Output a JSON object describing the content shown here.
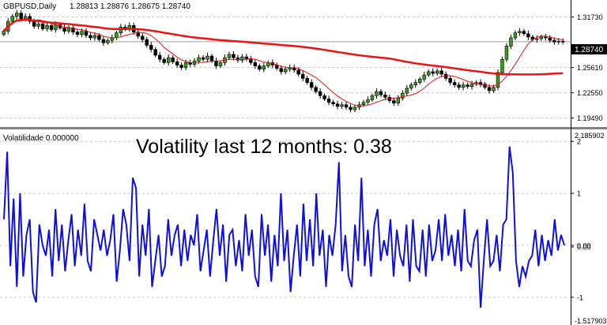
{
  "main_panel": {
    "symbol_label": "GBPUSD,Daily",
    "ohlc_label": "1.28813 1.28876 1.28675 1.28740",
    "current_price_label": "1.28740",
    "axis_ticks": [
      "1.31730",
      "1.28740",
      "1.25610",
      "1.22550",
      "1.19490"
    ]
  },
  "indicator_panel": {
    "indicator_label": "Volatilidade 0.000000",
    "annotation": "Volatility last 12 months: 0.38",
    "max_label": "2.185902",
    "min_label": "-1.517903",
    "axis_ticks": [
      "2",
      "1",
      "0.00",
      "0.00",
      "-1"
    ]
  },
  "colors": {
    "background": "#ffffff",
    "candle": "#000000",
    "bull_body": "#3c9a1c",
    "bear_body": "#000000",
    "long_ma": "#ee1111",
    "short_ma": "#ee1111",
    "oscillator": "#1010dd",
    "grid": "#c8c8c8",
    "price_box": "#000000",
    "price_text": "#ffffff"
  },
  "chart_data": [
    {
      "type": "candlestick",
      "ylim": [
        1.185,
        1.335
      ],
      "grid": true,
      "series": [
        {
          "values": [
            1.3,
            1.312,
            1.318,
            1.322,
            1.315,
            1.318,
            1.312,
            1.306,
            1.309,
            1.303,
            1.307,
            1.302,
            1.308,
            1.304,
            1.3,
            1.304,
            1.299,
            1.296,
            1.3,
            1.295,
            1.292,
            1.295,
            1.29,
            1.286,
            1.289,
            1.292,
            1.298,
            1.305,
            1.303,
            1.307,
            1.299,
            1.294,
            1.29,
            1.283,
            1.278,
            1.271,
            1.266,
            1.262,
            1.268,
            1.263,
            1.259,
            1.256,
            1.262,
            1.26,
            1.264,
            1.268,
            1.266,
            1.27,
            1.264,
            1.258,
            1.262,
            1.268,
            1.272,
            1.268,
            1.265,
            1.269,
            1.267,
            1.262,
            1.258,
            1.254,
            1.258,
            1.262,
            1.259,
            1.255,
            1.251,
            1.254,
            1.256,
            1.253,
            1.248,
            1.243,
            1.238,
            1.232,
            1.227,
            1.222,
            1.218,
            1.214,
            1.212,
            1.209,
            1.211,
            1.208,
            1.205,
            1.208,
            1.211,
            1.214,
            1.217,
            1.222,
            1.227,
            1.223,
            1.22,
            1.216,
            1.213,
            1.219,
            1.225,
            1.231,
            1.235,
            1.238,
            1.242,
            1.247,
            1.251,
            1.249,
            1.252,
            1.248,
            1.243,
            1.238,
            1.235,
            1.232,
            1.235,
            1.233,
            1.236,
            1.238,
            1.236,
            1.232,
            1.228,
            1.232,
            1.25,
            1.266,
            1.282,
            1.292,
            1.298,
            1.3,
            1.297,
            1.293,
            1.29,
            1.291,
            1.293,
            1.292,
            1.289,
            1.287,
            1.288,
            1.287
          ]
        }
      ]
    },
    {
      "type": "line",
      "ylim": [
        -1.517903,
        2.185902
      ],
      "grid": true,
      "series": [
        {
          "values": [
            0.5,
            1.8,
            -0.4,
            0.9,
            -0.8,
            1.0,
            -0.6,
            0.2,
            0.5,
            -0.9,
            -1.1,
            0.4,
            0.0,
            -0.2,
            0.3,
            -0.6,
            0.7,
            -0.3,
            0.4,
            -0.5,
            0.1,
            0.6,
            -0.4,
            0.3,
            -0.2,
            0.8,
            -0.3,
            -0.5,
            0.5,
            0.2,
            -0.1,
            0.3,
            -0.2,
            0.1,
            0.6,
            -0.7,
            -0.1,
            0.7,
            0.4,
            -0.3,
            1.3,
            1.1,
            -0.6,
            0.4,
            -0.2,
            0.7,
            -0.8,
            -0.3,
            0.2,
            -0.6,
            -0.4,
            0.5,
            -0.2,
            0.2,
            0.4,
            -0.4,
            0.3,
            -0.3,
            0.2,
            0.0,
            0.6,
            -0.5,
            -0.1,
            0.3,
            -0.6,
            0.1,
            0.7,
            -0.2,
            0.4,
            -0.7,
            0.2,
            0.3,
            -0.4,
            0.1,
            -0.5,
            0.6,
            -0.2,
            0.3,
            -0.6,
            -0.8,
            0.6,
            -0.2,
            0.4,
            -0.7,
            0.2,
            -0.4,
            1.0,
            -0.3,
            0.3,
            -0.9,
            -0.2,
            0.4,
            -0.6,
            0.8,
            -0.3,
            0.5,
            -0.4,
            1.0,
            -0.2,
            0.3,
            -0.8,
            0.2,
            -0.2,
            0.4,
            1.6,
            -0.5,
            0.2,
            -0.6,
            -0.8,
            0.4,
            -0.3,
            1.3,
            -0.4,
            0.3,
            -0.6,
            0.4,
            0.7,
            -0.3,
            0.1,
            -0.2,
            0.5,
            -0.6,
            0.3,
            -0.2,
            -0.4,
            0.4,
            -0.7,
            0.5,
            -0.4,
            -0.5,
            0.3,
            -0.6,
            0.4,
            -0.3,
            -0.1,
            0.5,
            -0.3,
            0.6,
            -0.2,
            0.2,
            -0.4,
            0.3,
            -0.5,
            0.7,
            -0.3,
            -0.4,
            0.1,
            0.3,
            -1.2,
            -0.3,
            0.5,
            -0.4,
            -0.3,
            0.2,
            -0.5,
            0.4,
            0.5,
            1.9,
            1.4,
            -0.3,
            -0.8,
            -0.4,
            -0.6,
            -0.3,
            -0.2,
            0.3,
            -0.4,
            0.2,
            -0.3,
            0.1,
            -0.2,
            0.5,
            -0.1,
            0.2,
            0.0
          ]
        }
      ]
    }
  ]
}
